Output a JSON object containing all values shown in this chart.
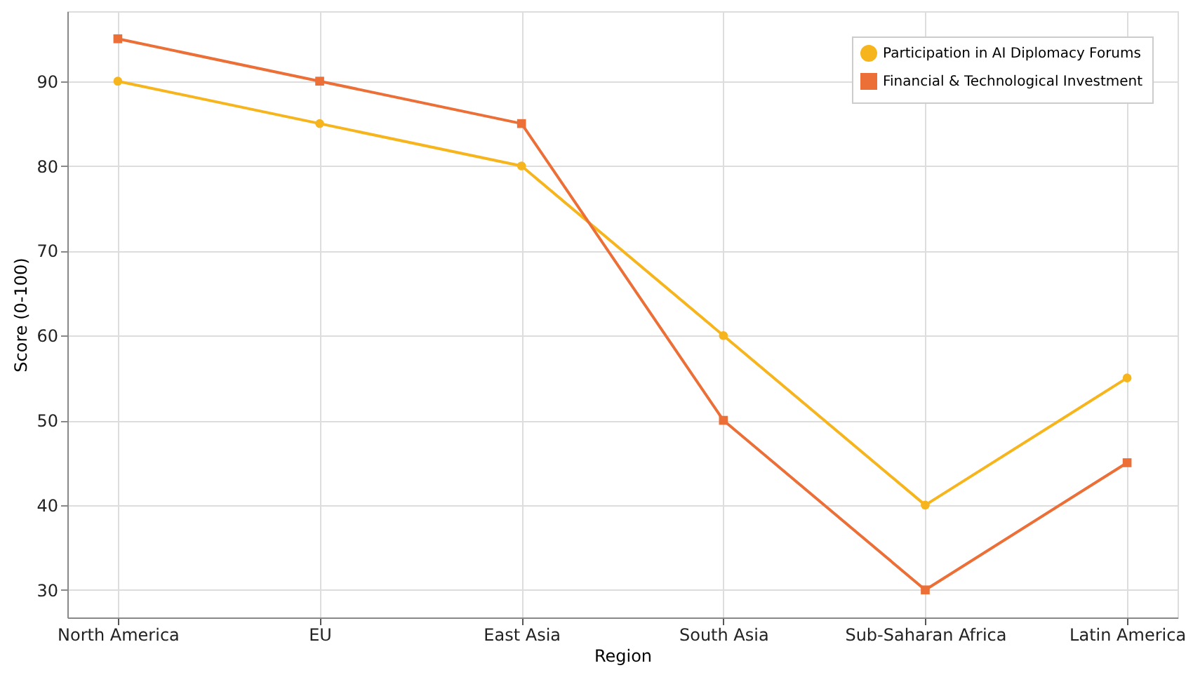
{
  "chart_data": {
    "type": "line",
    "xlabel": "Region",
    "ylabel": "Score (0-100)",
    "categories": [
      "North America",
      "EU",
      "East Asia",
      "South Asia",
      "Sub-Saharan Africa",
      "Latin America"
    ],
    "series": [
      {
        "name": "Participation in AI Diplomacy Forums",
        "color": "#f7b51d",
        "values": [
          90,
          85,
          80,
          60,
          40,
          55
        ],
        "marker": "circle"
      },
      {
        "name": "Financial & Technological Investment",
        "color": "#eb6f36",
        "values": [
          95,
          90,
          85,
          50,
          30,
          45
        ],
        "marker": "square"
      }
    ],
    "ylim": [
      26.75,
      98.25
    ],
    "yticks": [
      30,
      40,
      50,
      60,
      70,
      80,
      90
    ],
    "grid": true,
    "legend": "top right",
    "line_style": "solid"
  }
}
